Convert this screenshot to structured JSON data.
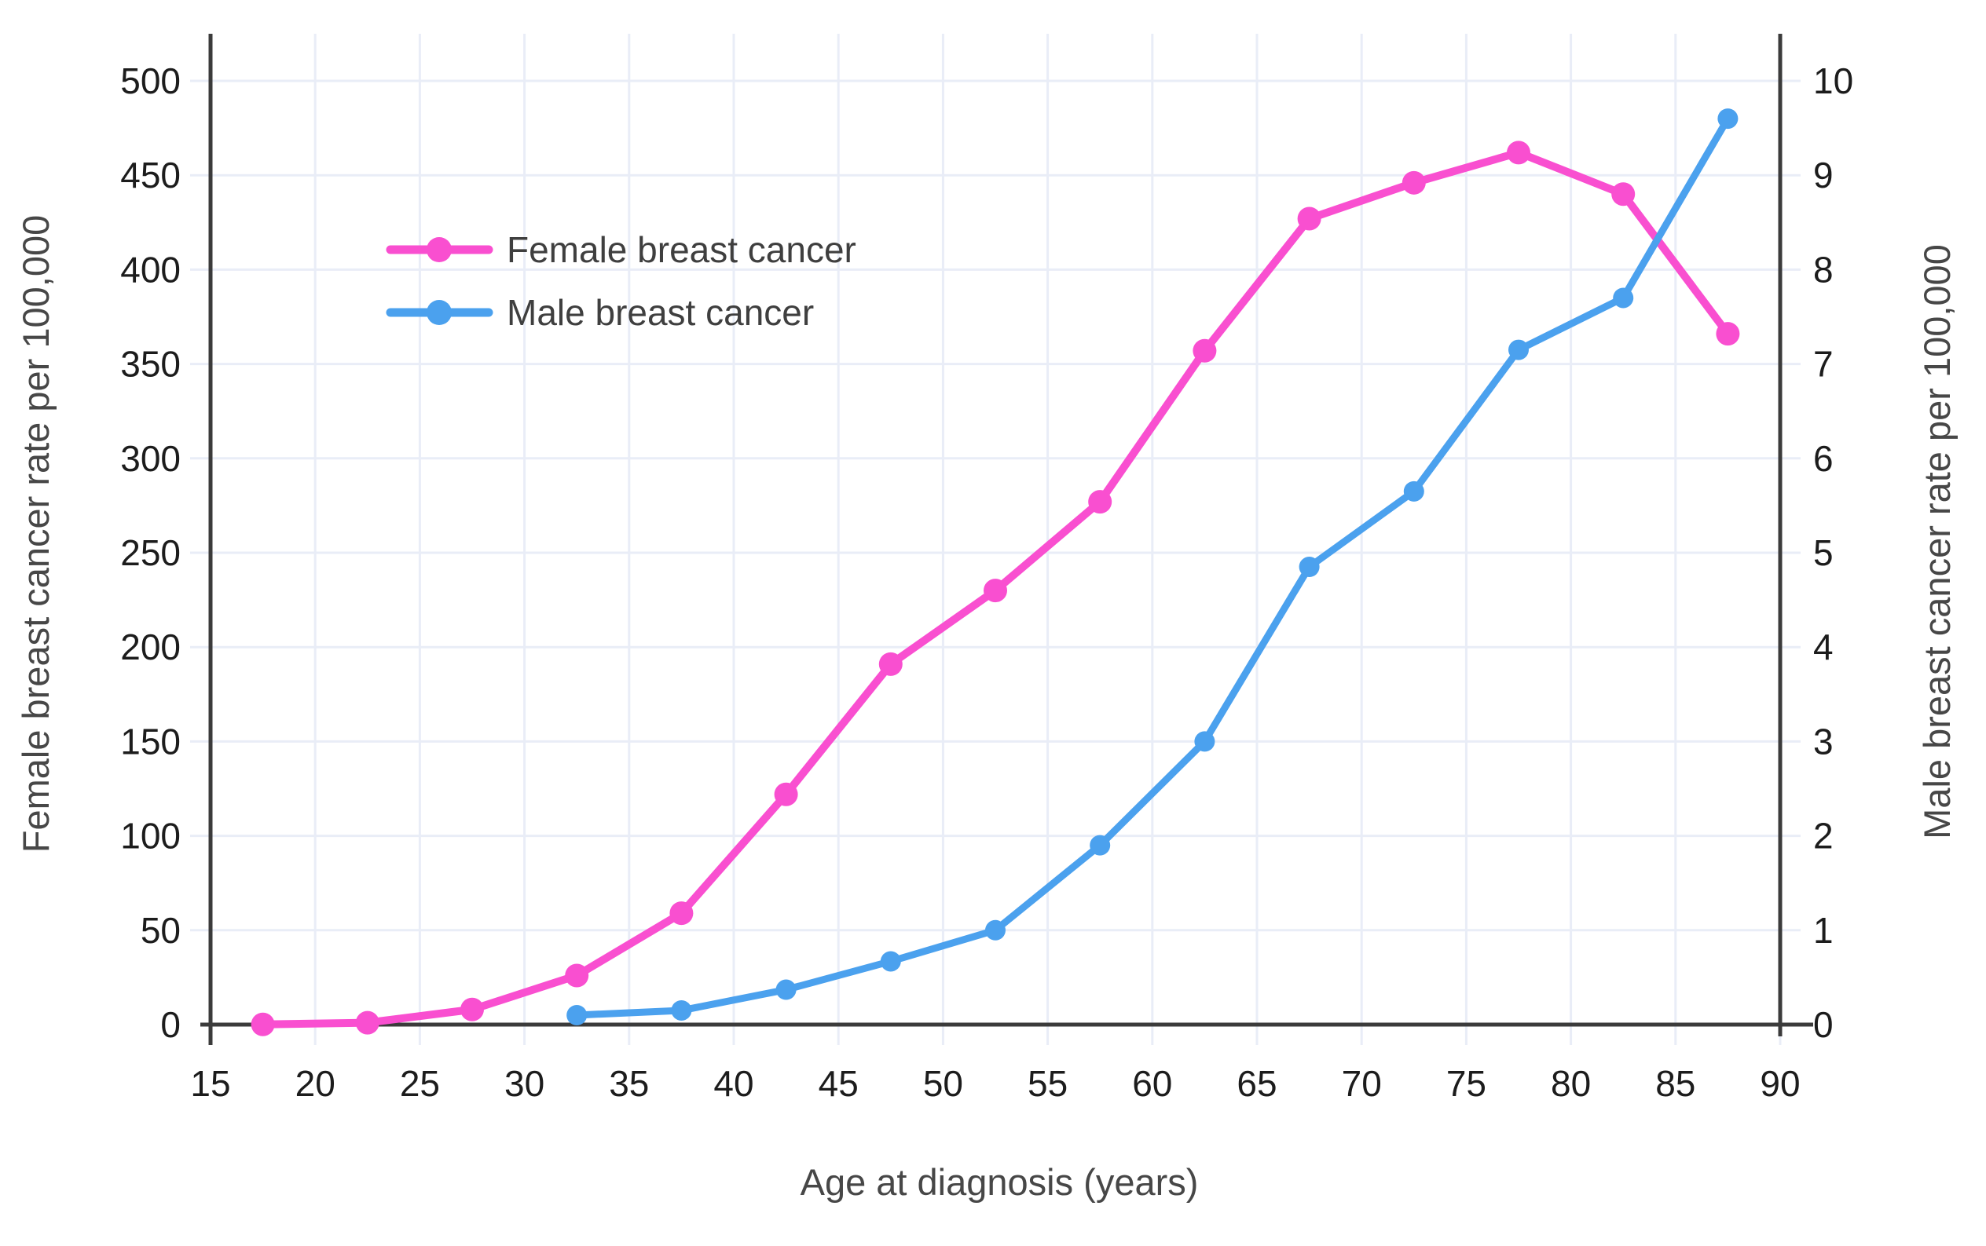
{
  "chart_data": {
    "type": "line",
    "title": "",
    "xlabel": "Age at diagnosis (years)",
    "xlim": [
      15,
      90
    ],
    "x_ticks": [
      15,
      20,
      25,
      30,
      35,
      40,
      45,
      50,
      55,
      60,
      65,
      70,
      75,
      80,
      85,
      90
    ],
    "grid": true,
    "background_color": "#ffffff",
    "grid_color": "#e9edf7",
    "axis_color": "#3b3b3b",
    "tick_label_color": "#1c1c1c",
    "axis_title_color": "#474747",
    "axes": {
      "left": {
        "label": "Female breast cancer rate per 100,000",
        "range": [
          0,
          500
        ],
        "ticks": [
          0,
          50,
          100,
          150,
          200,
          250,
          300,
          350,
          400,
          450,
          500
        ]
      },
      "right": {
        "label": "Male breast cancer rate per 100,000",
        "range": [
          0,
          10
        ],
        "ticks": [
          0,
          1,
          2,
          3,
          4,
          5,
          6,
          7,
          8,
          9,
          10
        ]
      }
    },
    "legend": {
      "position": "inside-top-left",
      "entries": [
        "Female breast cancer",
        "Male breast cancer"
      ]
    },
    "series": [
      {
        "name": "Female breast cancer",
        "axis": "left",
        "color": "#f94fd0",
        "x": [
          17.5,
          22.5,
          27.5,
          32.5,
          37.5,
          42.5,
          47.5,
          52.5,
          57.5,
          62.5,
          67.5,
          72.5,
          77.5,
          82.5,
          87.5
        ],
        "y": [
          0.1,
          1,
          8,
          26,
          59,
          122,
          191,
          230,
          277,
          357,
          427,
          446,
          462,
          440,
          366
        ]
      },
      {
        "name": "Male breast cancer",
        "axis": "right",
        "color": "#4ba1ee",
        "x": [
          32.5,
          37.5,
          42.5,
          47.5,
          52.5,
          57.5,
          62.5,
          67.5,
          72.5,
          77.5,
          82.5,
          87.5
        ],
        "y": [
          0.1,
          0.15,
          0.37,
          0.67,
          1.0,
          1.9,
          3.0,
          4.85,
          5.65,
          7.15,
          7.7,
          9.6
        ]
      }
    ]
  }
}
